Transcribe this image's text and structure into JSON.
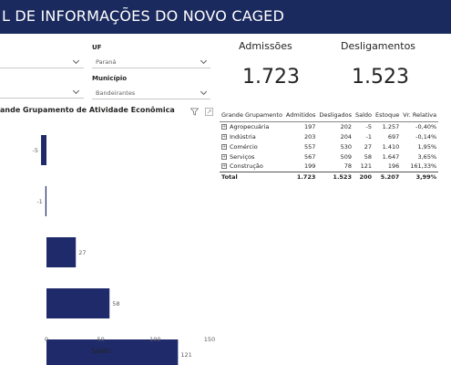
{
  "header": {
    "title": "L DE INFORMAÇÕES DO NOVO CAGED"
  },
  "filters": {
    "left1": {
      "value": ""
    },
    "uf": {
      "label": "UF",
      "value": "Paraná"
    },
    "left2": {
      "value": ""
    },
    "municipio": {
      "label": "Município",
      "value": "Bandeirantes"
    }
  },
  "kpis": {
    "admissoes": {
      "label": "Admissões",
      "value": "1.723"
    },
    "desligamentos": {
      "label": "Desligamentos",
      "value": "1.523"
    }
  },
  "chart_title": "ande Grupamento de Atividade Econômica",
  "chart_data": {
    "type": "bar",
    "orientation": "horizontal",
    "title": "ande Grupamento de Atividade Econômica",
    "xlabel": "Saldo",
    "ylabel": "",
    "values": [
      -5,
      -1,
      27,
      58,
      121
    ],
    "value_labels": [
      "-5",
      "-1",
      "27",
      "58",
      "121"
    ],
    "xlim": [
      -40,
      150
    ],
    "xticks": [
      0,
      50,
      100,
      150
    ],
    "xtick_labels": [
      "0",
      "50",
      "100",
      "150"
    ],
    "bar_color": "#1f2a6b"
  },
  "table": {
    "headers": [
      "Grande Grupamento",
      "Admitidos",
      "Desligados",
      "Saldo",
      "Estoque",
      "Vr. Relativa"
    ],
    "rows": [
      [
        "Agropecuária",
        "197",
        "202",
        "-5",
        "1.257",
        "-0,40%"
      ],
      [
        "Indústria",
        "203",
        "204",
        "-1",
        "697",
        "-0,14%"
      ],
      [
        "Comércio",
        "557",
        "530",
        "27",
        "1.410",
        "1,95%"
      ],
      [
        "Serviços",
        "567",
        "509",
        "58",
        "1.647",
        "3,65%"
      ],
      [
        "Construção",
        "199",
        "78",
        "121",
        "196",
        "161,33%"
      ]
    ],
    "total": [
      "Total",
      "1.723",
      "1.523",
      "200",
      "5.207",
      "3,99%"
    ],
    "expand_glyph": "+"
  }
}
